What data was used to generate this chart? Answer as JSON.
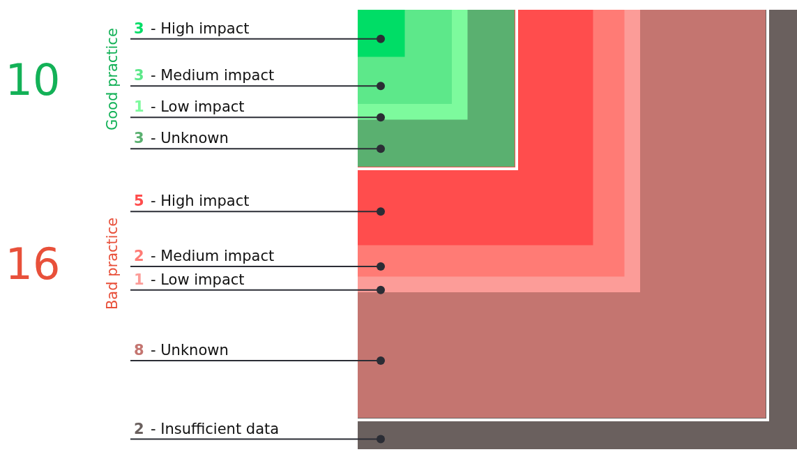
{
  "chart_data": {
    "type": "other",
    "categories": [
      "- High impact",
      "- Medium impact",
      "- Low impact",
      "- Unknown",
      "- Insufficient data"
    ],
    "data_labels": true,
    "series": [
      {
        "name": "Good practice",
        "color": "#13b157",
        "values": [
          3,
          3,
          1,
          3,
          null
        ],
        "colors": [
          "#00dd66",
          "#5de88a",
          "#7dfa9d",
          "#5ab070",
          null
        ]
      },
      {
        "name": "Bad practice",
        "color": "#e8503a",
        "values": [
          5,
          2,
          1,
          8,
          null
        ],
        "colors": [
          "#ff4d4d",
          "#ff7b75",
          "#fc9c98",
          "#c47570",
          null
        ]
      },
      {
        "values": [
          null,
          null,
          null,
          null,
          2
        ],
        "colors": [
          null,
          null,
          null,
          null,
          "#6a605e"
        ]
      }
    ],
    "annotations": [
      "10",
      "16"
    ]
  }
}
